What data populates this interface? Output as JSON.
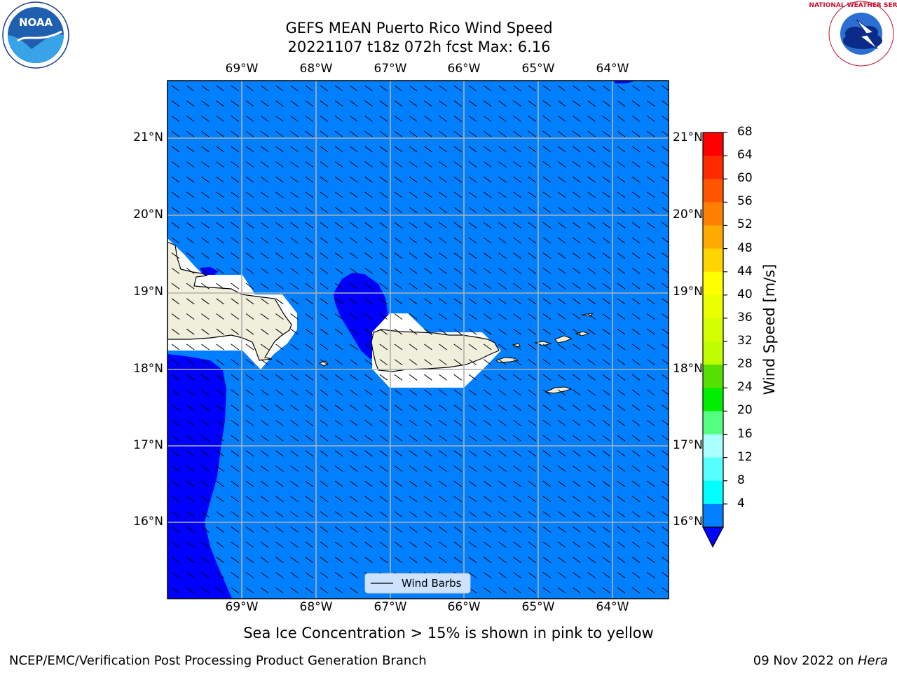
{
  "header": {
    "title_line1": "GEFS MEAN Puerto Rico Wind Speed",
    "title_line2": "20221107 t18z 072h fcst   Max: 6.16"
  },
  "map": {
    "lon_labels": [
      "69°W",
      "68°W",
      "67°W",
      "66°W",
      "65°W",
      "64°W"
    ],
    "lat_labels": [
      "21°N",
      "20°N",
      "19°N",
      "18°N",
      "17°N",
      "16°N"
    ],
    "legend_label": "Wind Barbs",
    "ocean_color": "#0080ff",
    "low_wind_color": "#0000ff",
    "land_color": "#efefdb",
    "barb_direction": "from west-northwest"
  },
  "colorbar": {
    "label": "Wind Speed [m/s]",
    "ticks": [
      "68",
      "64",
      "60",
      "56",
      "52",
      "48",
      "44",
      "40",
      "36",
      "32",
      "28",
      "24",
      "20",
      "16",
      "12",
      "8",
      "4"
    ],
    "colors": [
      "#ff0000",
      "#ff2a00",
      "#ff5500",
      "#ff8000",
      "#ffaa00",
      "#ffd400",
      "#ffff00",
      "#eaff00",
      "#d4ff00",
      "#bfff00",
      "#55e000",
      "#00ee00",
      "#55ff80",
      "#aaffff",
      "#55ffff",
      "#00ffff",
      "#0080ff"
    ],
    "under_color": "#0000ff"
  },
  "footer": {
    "note": "Sea Ice Concentration > 15% is shown in pink to yellow",
    "credit": "NCEP/EMC/Verification Post Processing Product Generation Branch",
    "date": "09 Nov 2022 on ",
    "machine": "Hera"
  },
  "logos": {
    "left_text": "NOAA",
    "right_text": "NATIONAL WEATHER SERVICE"
  }
}
